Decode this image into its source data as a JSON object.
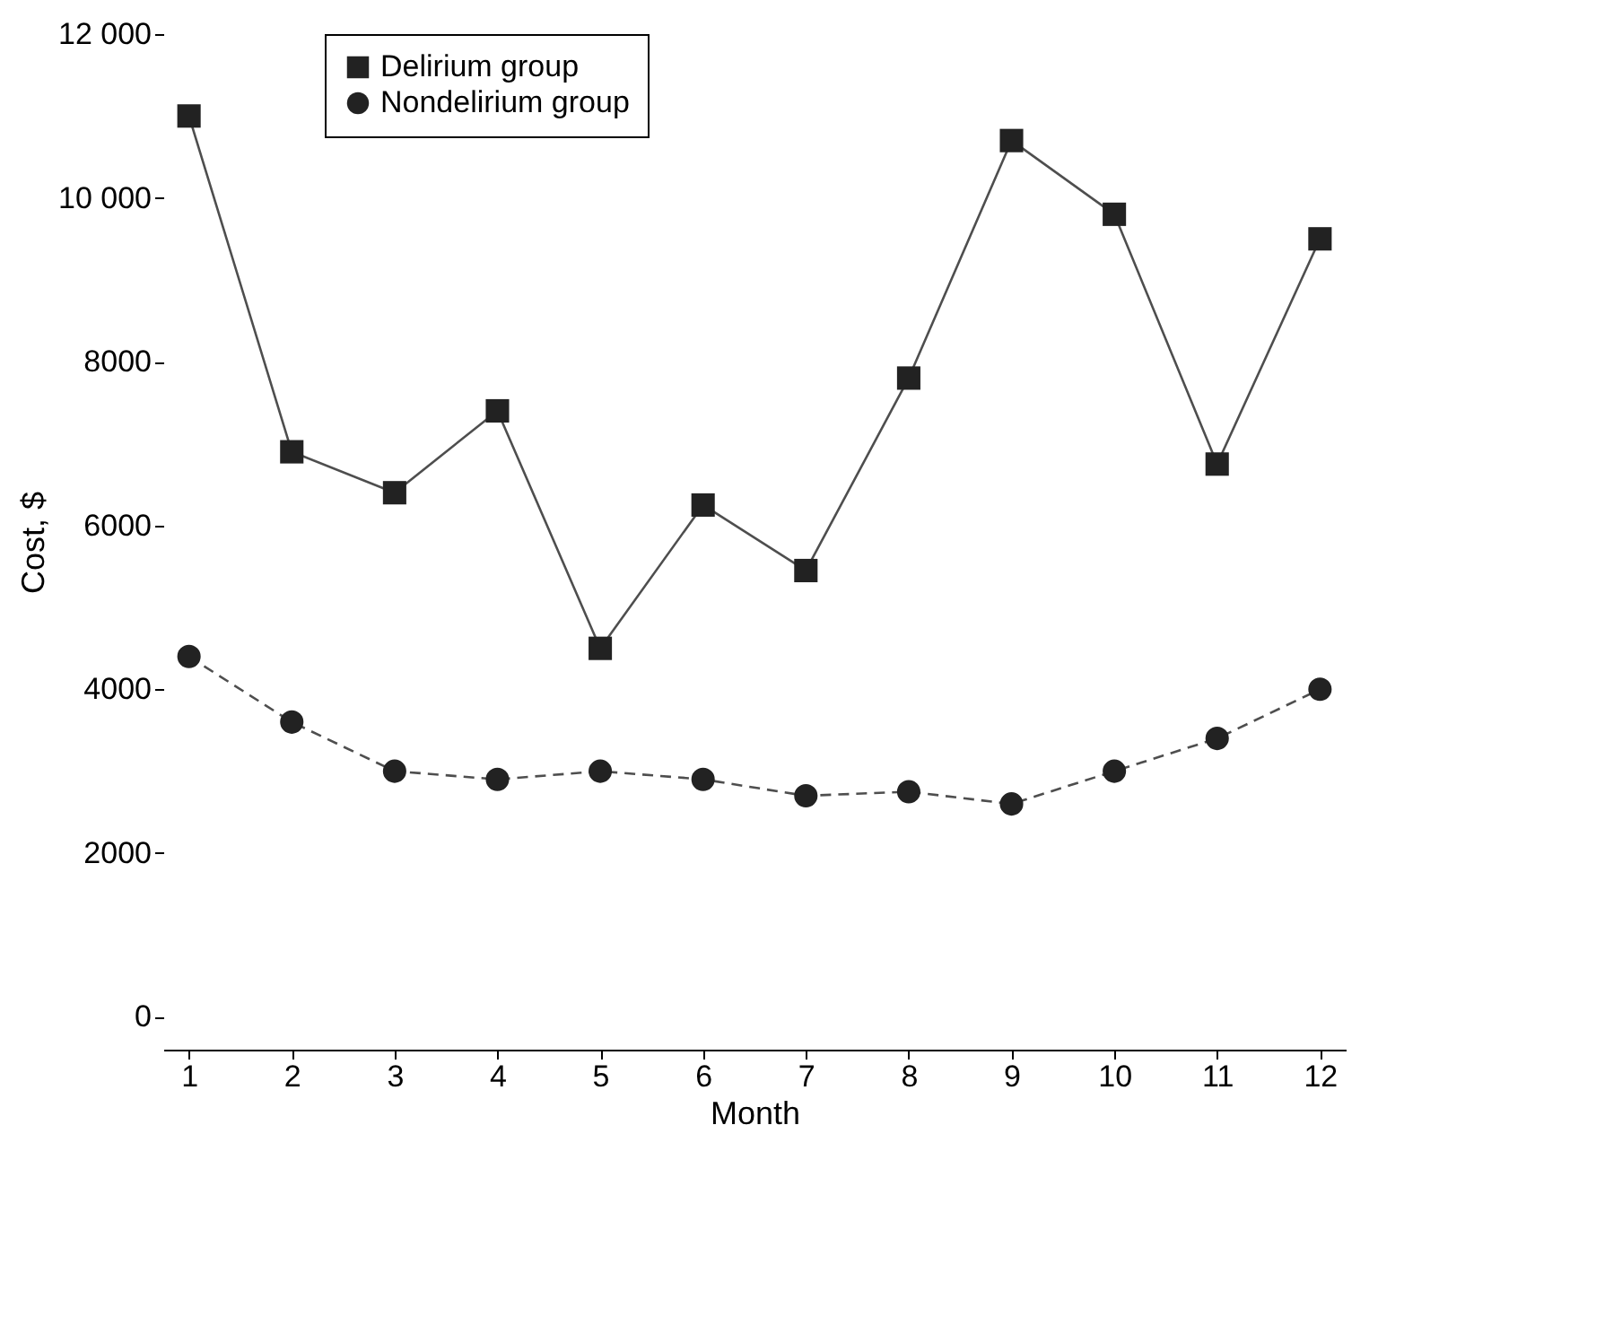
{
  "chart_data": {
    "type": "line",
    "xlabel": "Month",
    "ylabel": "Cost, $",
    "x": [
      1,
      2,
      3,
      4,
      5,
      6,
      7,
      8,
      9,
      10,
      11,
      12
    ],
    "series": [
      {
        "name": "Delirium group",
        "color": "#222222",
        "marker": "square",
        "line_style": "solid",
        "values": [
          11000,
          6900,
          6400,
          7400,
          4500,
          6250,
          5450,
          7800,
          10700,
          9800,
          6750,
          9500
        ]
      },
      {
        "name": "Nondelirium group",
        "color": "#222222",
        "marker": "circle",
        "line_style": "dashed",
        "values": [
          4400,
          3600,
          3000,
          2900,
          3000,
          2900,
          2700,
          2750,
          2600,
          3000,
          3400,
          4000
        ]
      }
    ],
    "xlim": [
      0.75,
      12.25
    ],
    "xticks": [
      1,
      2,
      3,
      4,
      5,
      6,
      7,
      8,
      9,
      10,
      11,
      12
    ],
    "ylim": [
      -400,
      12000
    ],
    "yticks": [
      0,
      2000,
      4000,
      6000,
      8000,
      {
        "value": 10000,
        "label": "10 000"
      },
      {
        "value": 12000,
        "label": "12 000"
      }
    ],
    "grid": false,
    "legend": "top left"
  }
}
